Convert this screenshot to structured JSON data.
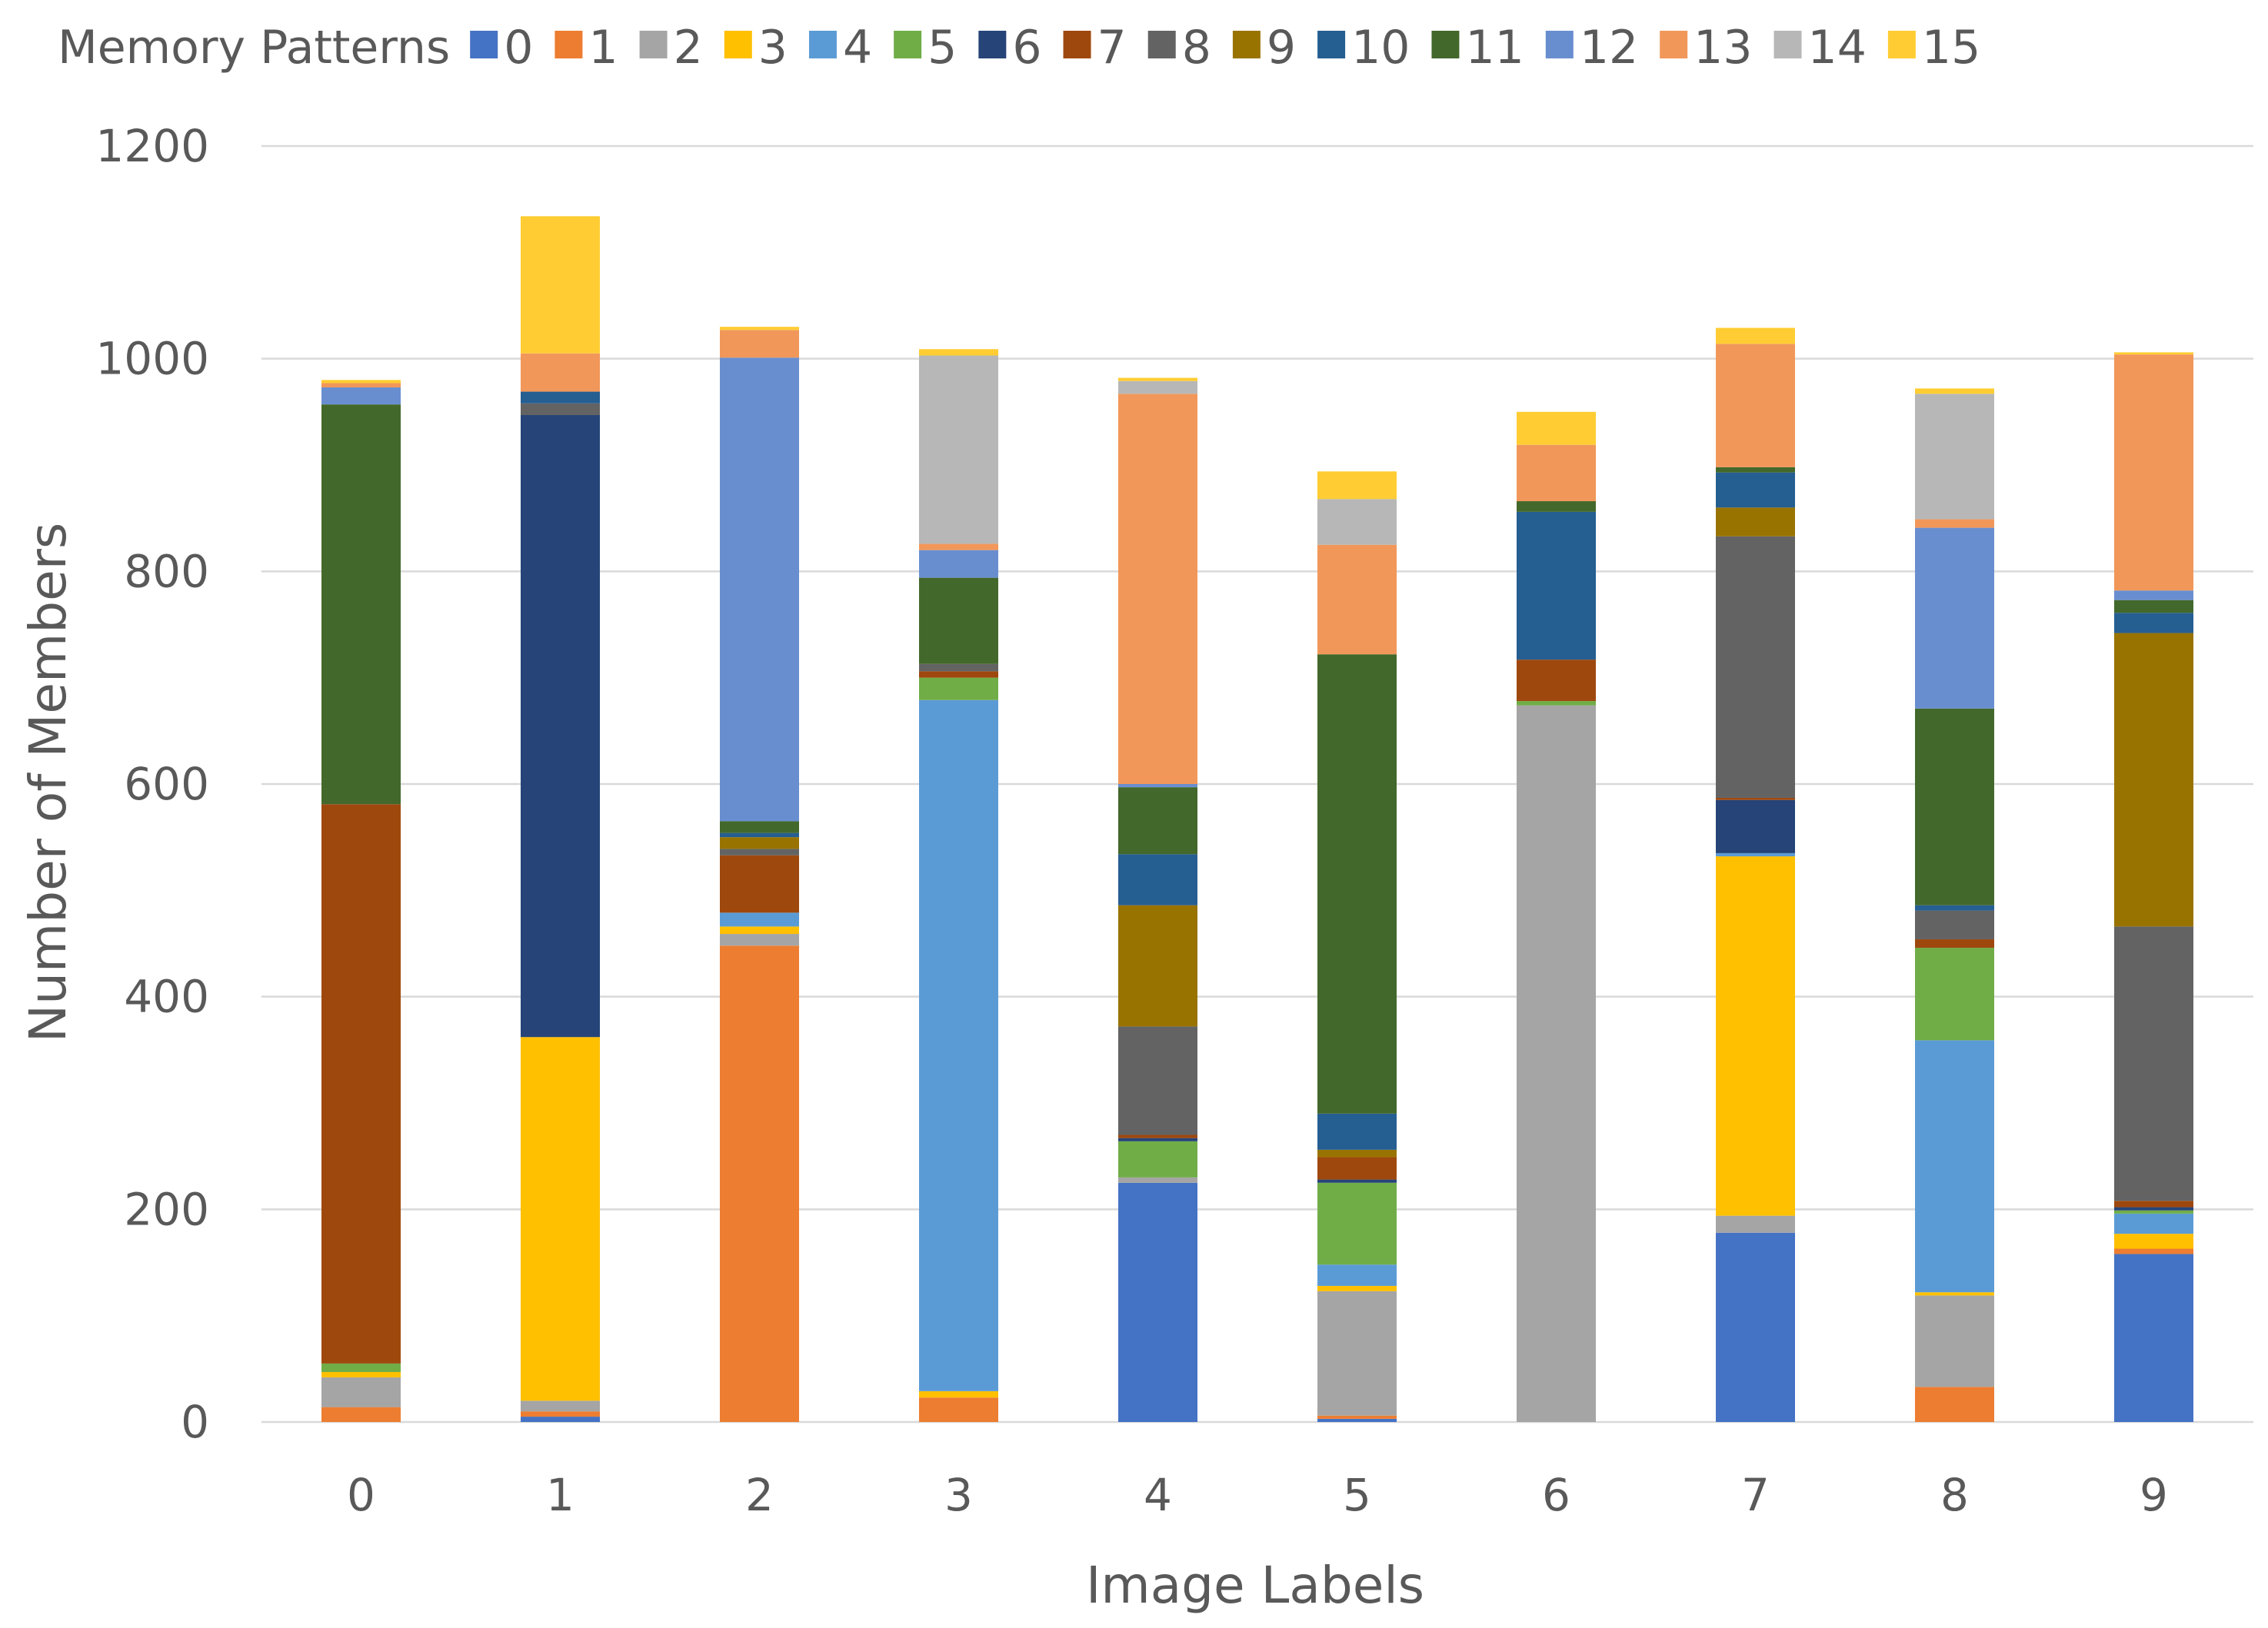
{
  "chart_data": {
    "type": "bar",
    "stacked": true,
    "title": "",
    "xlabel": "Image Labels",
    "ylabel": "Number of Members",
    "ylim": [
      0,
      1200
    ],
    "yticks": [
      0,
      200,
      400,
      600,
      800,
      1000,
      1200
    ],
    "grid": true,
    "legend_title": "Memory Patterns",
    "legend_position": "top",
    "categories": [
      "0",
      "1",
      "2",
      "3",
      "4",
      "5",
      "6",
      "7",
      "8",
      "9"
    ],
    "series": [
      {
        "name": "0",
        "color": "#4472C4",
        "values": [
          0,
          5,
          0,
          0,
          225,
          3,
          0,
          178,
          0,
          158
        ]
      },
      {
        "name": "1",
        "color": "#ED7D31",
        "values": [
          14,
          5,
          448,
          23,
          0,
          3,
          0,
          0,
          33,
          5
        ]
      },
      {
        "name": "2",
        "color": "#A5A5A5",
        "values": [
          28,
          10,
          11,
          0,
          5,
          117,
          674,
          16,
          86,
          0
        ]
      },
      {
        "name": "3",
        "color": "#FFC000",
        "values": [
          5,
          342,
          7,
          6,
          0,
          5,
          0,
          338,
          3,
          14
        ]
      },
      {
        "name": "4",
        "color": "#5B9BD5",
        "values": [
          0,
          0,
          13,
          650,
          0,
          20,
          0,
          3,
          237,
          19
        ]
      },
      {
        "name": "5",
        "color": "#70AD47",
        "values": [
          8,
          0,
          0,
          21,
          34,
          77,
          4,
          0,
          87,
          3
        ]
      },
      {
        "name": "6",
        "color": "#264478",
        "values": [
          0,
          585,
          0,
          0,
          3,
          3,
          0,
          50,
          0,
          3
        ]
      },
      {
        "name": "7",
        "color": "#9E480E",
        "values": [
          526,
          0,
          54,
          6,
          3,
          21,
          39,
          2,
          8,
          6
        ]
      },
      {
        "name": "8",
        "color": "#636363",
        "values": [
          0,
          11,
          6,
          7,
          102,
          0,
          0,
          246,
          27,
          258
        ]
      },
      {
        "name": "9",
        "color": "#997300",
        "values": [
          0,
          0,
          11,
          0,
          114,
          7,
          0,
          27,
          0,
          276
        ]
      },
      {
        "name": "10",
        "color": "#255E91",
        "values": [
          0,
          11,
          4,
          0,
          48,
          34,
          139,
          33,
          5,
          19
        ]
      },
      {
        "name": "11",
        "color": "#43682B",
        "values": [
          376,
          0,
          11,
          81,
          63,
          432,
          10,
          5,
          185,
          12
        ]
      },
      {
        "name": "12",
        "color": "#698ED0",
        "values": [
          16,
          0,
          436,
          26,
          3,
          0,
          0,
          0,
          170,
          9
        ]
      },
      {
        "name": "13",
        "color": "#F1975A",
        "values": [
          4,
          36,
          26,
          6,
          367,
          103,
          53,
          116,
          8,
          222
        ]
      },
      {
        "name": "14",
        "color": "#B7B7B7",
        "values": [
          0,
          0,
          0,
          177,
          12,
          43,
          0,
          0,
          118,
          0
        ]
      },
      {
        "name": "15",
        "color": "#FFCD33",
        "values": [
          3,
          129,
          3,
          6,
          3,
          26,
          31,
          15,
          5,
          2
        ]
      }
    ]
  }
}
